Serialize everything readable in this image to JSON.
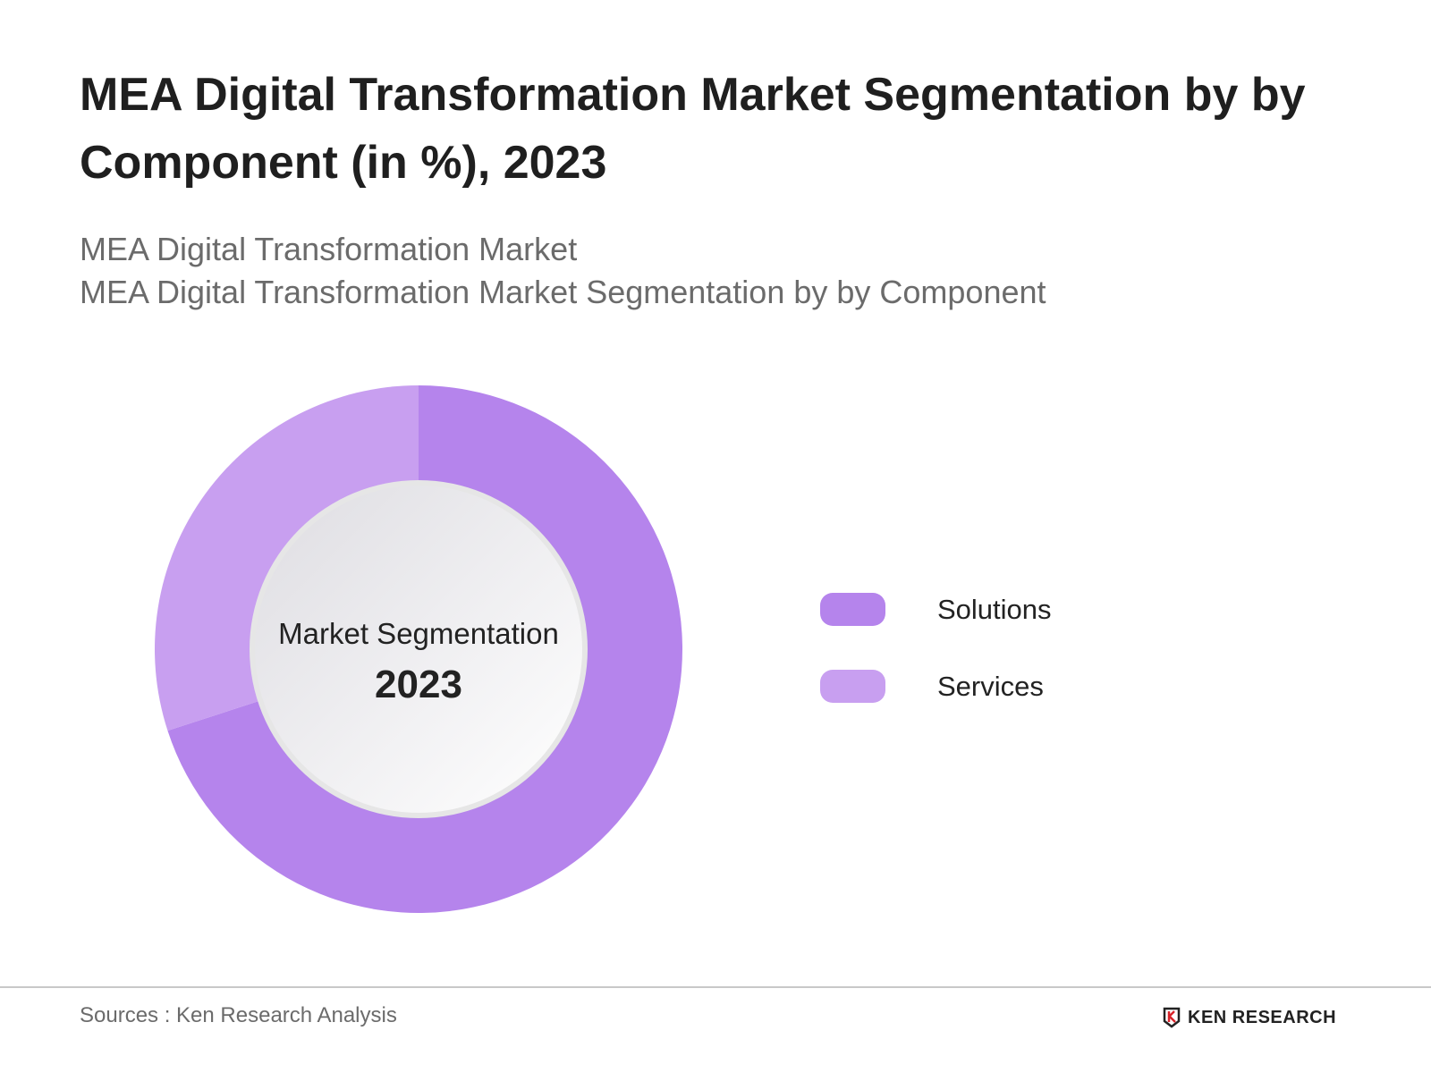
{
  "title": "MEA Digital Transformation Market Segmentation by by Component (in %), 2023",
  "subtitle_1": "MEA Digital Transformation Market",
  "subtitle_2": "MEA Digital Transformation Market Segmentation by by Component",
  "chart_data": {
    "type": "pie",
    "variant": "donut",
    "center_label": "Market Segmentation",
    "center_year": "2023",
    "categories": [
      "Solutions",
      "Services"
    ],
    "values": [
      70,
      30
    ],
    "colors": [
      "#b584ec",
      "#c89ff0"
    ],
    "legend_position": "right"
  },
  "footer": {
    "source": "Sources : Ken Research Analysis",
    "logo_text": "KEN RESEARCH"
  }
}
